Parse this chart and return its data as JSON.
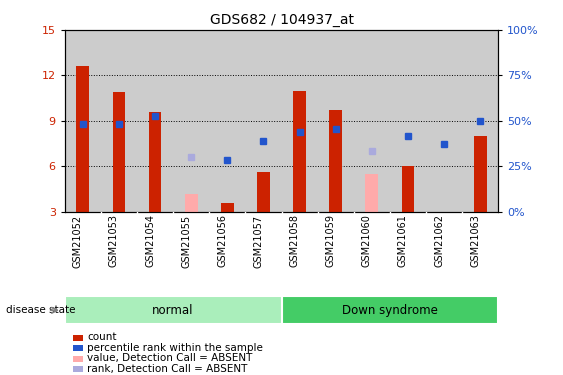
{
  "title": "GDS682 / 104937_at",
  "samples": [
    "GSM21052",
    "GSM21053",
    "GSM21054",
    "GSM21055",
    "GSM21056",
    "GSM21057",
    "GSM21058",
    "GSM21059",
    "GSM21060",
    "GSM21061",
    "GSM21062",
    "GSM21063"
  ],
  "red_bars": [
    12.6,
    10.9,
    9.6,
    null,
    3.6,
    5.6,
    11.0,
    9.7,
    null,
    6.0,
    null,
    8.0
  ],
  "pink_bars": [
    null,
    null,
    null,
    4.2,
    null,
    null,
    null,
    null,
    5.5,
    null,
    null,
    null
  ],
  "blue_squares": [
    8.8,
    8.8,
    9.3,
    null,
    6.4,
    7.7,
    8.3,
    8.5,
    null,
    8.0,
    7.5,
    9.0
  ],
  "lavender_squares": [
    null,
    null,
    null,
    6.6,
    null,
    null,
    null,
    null,
    7.0,
    null,
    null,
    null
  ],
  "ylim_left": [
    3,
    15
  ],
  "ylim_right": [
    0,
    100
  ],
  "yticks_left": [
    3,
    6,
    9,
    12,
    15
  ],
  "yticks_right": [
    0,
    25,
    50,
    75,
    100
  ],
  "yticklabels_right": [
    "0%",
    "25%",
    "50%",
    "75%",
    "100%"
  ],
  "group_normal_label": "normal",
  "group_down_label": "Down syndrome",
  "disease_state_label": "disease state",
  "bar_width": 0.35,
  "red_color": "#CC2200",
  "pink_color": "#FFAAAA",
  "blue_color": "#2255CC",
  "lavender_color": "#AAAADD",
  "normal_bg": "#AAEEBB",
  "down_bg": "#44CC66",
  "sample_bg": "#CCCCCC",
  "legend_items": [
    "count",
    "percentile rank within the sample",
    "value, Detection Call = ABSENT",
    "rank, Detection Call = ABSENT"
  ]
}
